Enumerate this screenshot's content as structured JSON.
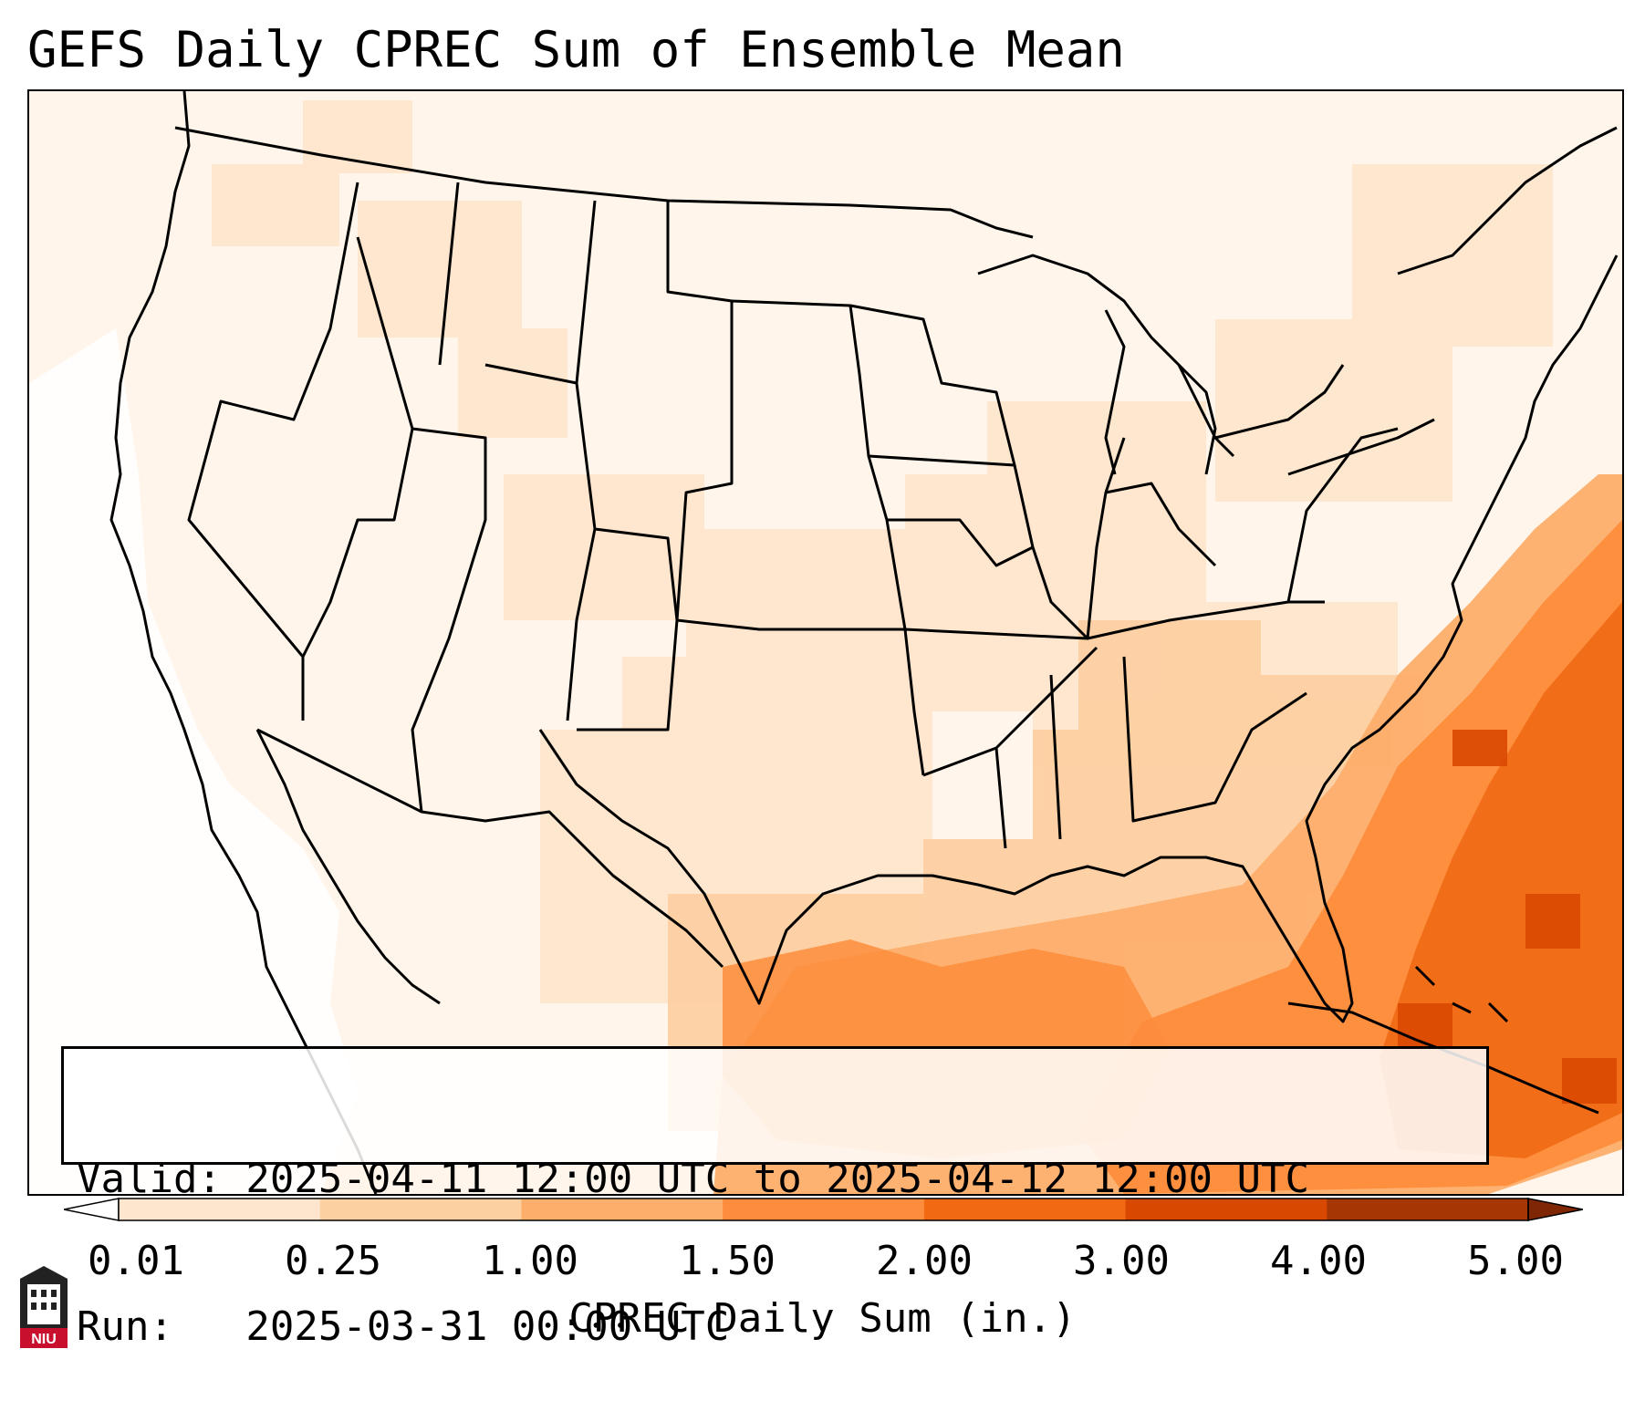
{
  "title": "GEFS Daily CPREC Sum of Ensemble Mean",
  "info": {
    "valid_line": "Valid: 2025-04-11 12:00 UTC to 2025-04-12 12:00 UTC",
    "run_line": "Run:   2025-03-31 00:00 UTC"
  },
  "colorbar": {
    "label": "CPREC Daily Sum (in.)",
    "ticks": [
      "0.01",
      "0.25",
      "1.00",
      "1.50",
      "2.00",
      "3.00",
      "4.00",
      "5.00"
    ],
    "colors": [
      "#fff5eb",
      "#fee6ce",
      "#fdd0a2",
      "#fdae6b",
      "#fd8d3c",
      "#f16913",
      "#d94801",
      "#a63603"
    ]
  },
  "logo": {
    "text": "NIU",
    "icon": "niu-tower-logo-icon"
  }
}
